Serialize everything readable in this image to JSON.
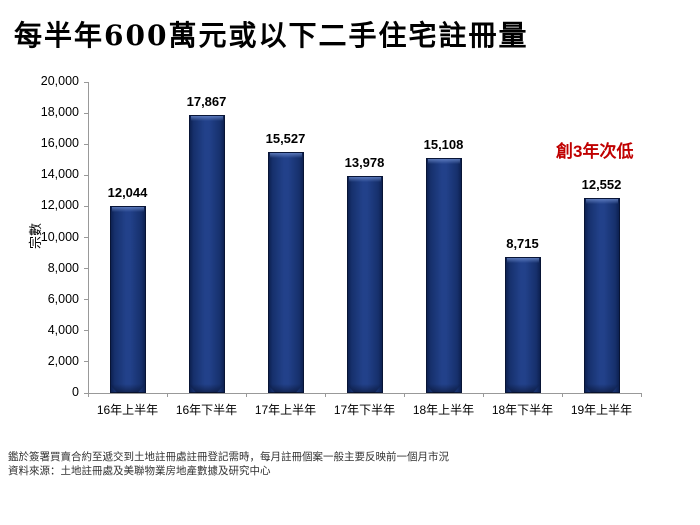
{
  "title": "每半年600萬元或以下二手住宅註冊量",
  "chart_data": {
    "type": "bar",
    "title": "每半年600萬元或以下二手住宅註冊量",
    "categories": [
      "16年上半年",
      "16年下半年",
      "17年上半年",
      "17年下半年",
      "18年上半年",
      "18年下半年",
      "19年上半年"
    ],
    "values": [
      12044,
      17867,
      15527,
      13978,
      15108,
      8715,
      12552
    ],
    "value_labels": [
      "12,044",
      "17,867",
      "15,527",
      "13,978",
      "15,108",
      "8,715",
      "12,552"
    ],
    "xlabel": "",
    "ylabel": "宗數",
    "ylim": [
      0,
      20000
    ],
    "ytick_interval": 2000,
    "ytick_labels": [
      "0",
      "2,000",
      "4,000",
      "6,000",
      "8,000",
      "10,000",
      "12,000",
      "14,000",
      "16,000",
      "18,000",
      "20,000"
    ],
    "grid": false,
    "legend": "none",
    "bar_color": "#1c3578",
    "bar_edge_color": "#0a1a40",
    "annotation": {
      "text": "創3年次低",
      "color": "#c00000"
    }
  },
  "footnotes": {
    "line1": "鑑於簽署買賣合約至遞交到土地註冊處註冊登記需時，每月註冊個案一般主要反映前一個月市況",
    "line2": "資料來源：土地註冊處及美聯物業房地產數據及研究中心"
  }
}
